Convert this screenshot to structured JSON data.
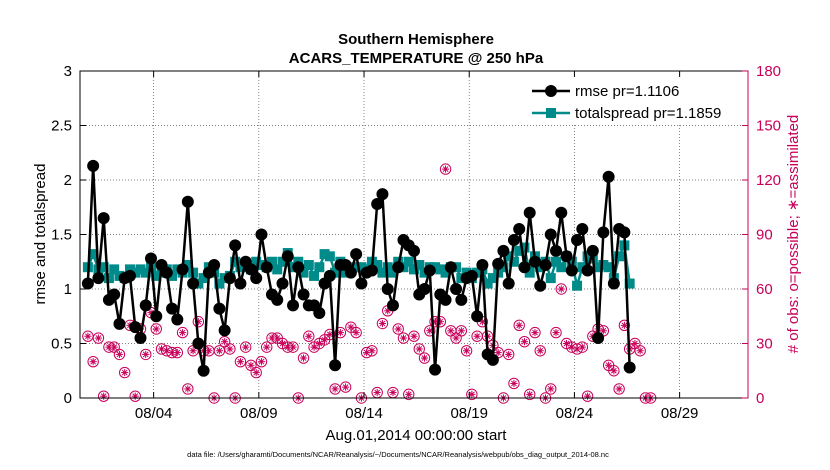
{
  "chart_data": {
    "type": "line",
    "title": "Southern Hemisphere",
    "subtitle": "ACARS_TEMPERATURE @ 250 hPa",
    "xlabel": "Aug.01,2014 00:00:00 start",
    "ylabel": "rmse and totalspread",
    "y2label": "# of obs: o=possible; ∗=assimilated",
    "footnote": "data file: /Users/gharamti/Documents/NCAR/Reanalysis/~/Documents/NCAR/Reanalysis/webpub/obs_diag_output_2014-08.nc",
    "xlim": [
      0.5,
      32.25
    ],
    "ylim": [
      0,
      3
    ],
    "y2lim": [
      0,
      180
    ],
    "xticks": [
      {
        "x": 4,
        "label": "08/04"
      },
      {
        "x": 9,
        "label": "08/09"
      },
      {
        "x": 14,
        "label": "08/14"
      },
      {
        "x": 19,
        "label": "08/19"
      },
      {
        "x": 24,
        "label": "08/24"
      },
      {
        "x": 29,
        "label": "08/29"
      }
    ],
    "yticks": [
      {
        "v": 0,
        "label": "0"
      },
      {
        "v": 0.5,
        "label": "0.5"
      },
      {
        "v": 1,
        "label": "1"
      },
      {
        "v": 1.5,
        "label": "1.5"
      },
      {
        "v": 2,
        "label": "2"
      },
      {
        "v": 2.5,
        "label": "2.5"
      },
      {
        "v": 3,
        "label": "3"
      }
    ],
    "y2ticks": [
      {
        "v": 0,
        "label": "0"
      },
      {
        "v": 30,
        "label": "30"
      },
      {
        "v": 60,
        "label": "60"
      },
      {
        "v": 90,
        "label": "90"
      },
      {
        "v": 120,
        "label": "120"
      },
      {
        "v": 150,
        "label": "150"
      },
      {
        "v": 180,
        "label": "180"
      }
    ],
    "grid": "dotted",
    "legend_position": "top-right",
    "x_start": 0.875,
    "x_step": 0.25,
    "series": [
      {
        "name": "rmse pr=1.1106",
        "color": "#000000",
        "marker": "circle",
        "values": [
          1.05,
          2.13,
          1.1,
          1.65,
          0.9,
          0.95,
          0.68,
          1.1,
          1.12,
          0.65,
          0.55,
          0.85,
          1.28,
          0.75,
          1.22,
          1.15,
          0.82,
          0.72,
          1.18,
          1.8,
          1.05,
          0.5,
          0.25,
          1.15,
          1.22,
          0.82,
          0.62,
          1.1,
          1.4,
          1.05,
          1.25,
          1.18,
          1.1,
          1.5,
          1.2,
          0.95,
          0.9,
          1.05,
          1.3,
          0.85,
          1.2,
          0.95,
          0.85,
          0.85,
          0.78,
          1.05,
          1.12,
          0.3,
          1.22,
          1.22,
          1.15,
          1.32,
          1.05,
          1.15,
          1.17,
          1.78,
          1.87,
          1.0,
          0.85,
          1.2,
          1.45,
          1.4,
          1.35,
          0.95,
          1.0,
          1.17,
          0.26,
          0.95,
          0.9,
          1.2,
          1.0,
          0.9,
          1.1,
          1.12,
          0.75,
          1.22,
          0.4,
          0.35,
          1.23,
          1.35,
          1.05,
          1.45,
          1.55,
          1.2,
          1.7,
          1.25,
          1.03,
          1.22,
          1.5,
          1.35,
          1.7,
          1.3,
          1.17,
          1.45,
          1.55,
          1.17,
          1.35,
          0.55,
          1.52,
          2.03,
          1.05,
          1.55,
          1.52,
          0.28
        ],
        "open": [
          1.05,
          2.13,
          1.1,
          1.65,
          0.9,
          0.95,
          0.68,
          1.1,
          1.12,
          0.65,
          0.55,
          0.85,
          1.28,
          0.75,
          1.22,
          1.15,
          0.82,
          0.72,
          1.18,
          1.8,
          1.05,
          0.5,
          0.25,
          1.15,
          1.22,
          0.82,
          0.62,
          1.1,
          1.4,
          1.05,
          1.25,
          1.18,
          1.1,
          1.5,
          1.2,
          0.95,
          0.9,
          1.05,
          1.3,
          0.85,
          1.2,
          0.95,
          0.85,
          0.85,
          0.78,
          1.05,
          1.12,
          0.3,
          1.22,
          1.22,
          1.15,
          1.32,
          1.05,
          1.15,
          1.17,
          1.78,
          1.87,
          1.0,
          0.85,
          1.2,
          1.45,
          1.4,
          1.35,
          0.95,
          1.0,
          1.17,
          0.26,
          0.95,
          0.9,
          1.2,
          1.0,
          0.9,
          1.1,
          1.12,
          0.75,
          1.22,
          0.4,
          0.35,
          1.23,
          1.35,
          1.05,
          1.45,
          1.55,
          1.2,
          1.7,
          1.25,
          1.03,
          1.22,
          1.5,
          1.35,
          1.7,
          1.3,
          1.17,
          1.45,
          1.55,
          1.17,
          1.35,
          0.55,
          1.52,
          2.03,
          1.05,
          1.55,
          1.52,
          0.28
        ]
      },
      {
        "name": "totalspread pr=1.1859",
        "color": "#008b8b",
        "marker": "square",
        "values": [
          1.2,
          1.32,
          1.18,
          1.2,
          1.1,
          1.18,
          1.12,
          1.1,
          1.18,
          1.15,
          1.18,
          1.15,
          1.2,
          1.12,
          1.15,
          1.18,
          1.12,
          1.18,
          1.15,
          1.22,
          1.15,
          1.05,
          1.1,
          1.2,
          1.15,
          1.05,
          1.1,
          1.12,
          1.25,
          1.2,
          1.22,
          1.18,
          1.25,
          1.22,
          1.2,
          1.25,
          1.18,
          1.25,
          1.33,
          1.2,
          1.25,
          1.15,
          1.22,
          1.12,
          1.2,
          1.32,
          1.3,
          1.15,
          1.25,
          1.15,
          1.18,
          1.2,
          1.2,
          1.18,
          1.25,
          1.22,
          1.15,
          1.2,
          1.15,
          1.25,
          1.2,
          1.25,
          1.18,
          1.22,
          1.15,
          1.2,
          1.2,
          1.18,
          1.15,
          1.2,
          1.2,
          1.1,
          1.15,
          1.1,
          1.15,
          1.18,
          1.05,
          1.1,
          1.15,
          1.2,
          1.3,
          1.25,
          1.35,
          1.38,
          1.15,
          1.3,
          1.2,
          1.25,
          1.1,
          1.25,
          1.2,
          1.3,
          1.25,
          1.03,
          1.2,
          1.3,
          1.28,
          1.2,
          1.22,
          1.2,
          1.1,
          1.3,
          1.4,
          1.05
        ]
      },
      {
        "name": "possible",
        "color": "#c8005a",
        "marker": "o",
        "axis": "right",
        "values": [
          34,
          20,
          33,
          1,
          28,
          28,
          24,
          14,
          40,
          1,
          38,
          24,
          47,
          38,
          27,
          26,
          25,
          25,
          36,
          5,
          26,
          42,
          26,
          26,
          0,
          26,
          31,
          27,
          0,
          20,
          28,
          18,
          14,
          20,
          28,
          33,
          33,
          30,
          28,
          28,
          0,
          22,
          34,
          28,
          30,
          32,
          35,
          5,
          36,
          6,
          39,
          36,
          0,
          25,
          26,
          3,
          41,
          48,
          3,
          38,
          33,
          2,
          34,
          27,
          22,
          37,
          42,
          42,
          126,
          37,
          33,
          37,
          26,
          2,
          34,
          42,
          34,
          29,
          25,
          0,
          24,
          8,
          40,
          31,
          2,
          36,
          26,
          0,
          5,
          36,
          60,
          30,
          28,
          27,
          28,
          1,
          34,
          38,
          37,
          18,
          15,
          5,
          40,
          27,
          30,
          26,
          0,
          0
        ],
        "x": [
          0.875,
          1.125,
          1.375,
          1.625,
          1.875,
          2.125,
          2.375,
          2.625,
          2.875,
          3.125,
          3.375,
          3.625,
          3.875,
          4.125,
          4.375,
          4.625,
          4.875,
          5.125,
          5.375,
          5.625,
          5.875,
          6.125,
          6.375,
          6.625,
          6.875,
          7.125,
          7.375,
          7.625,
          7.875,
          8.125,
          8.375,
          8.625,
          8.875,
          9.125,
          9.375,
          9.625,
          9.875,
          10.125,
          10.375,
          10.625,
          10.875,
          11.125,
          11.375,
          11.625,
          11.875,
          12.125,
          12.375,
          12.625,
          12.875,
          13.125,
          13.375,
          13.625,
          13.875,
          14.125,
          14.375,
          14.625,
          14.875,
          15.125,
          15.375,
          15.625,
          15.875,
          16.125,
          16.375,
          16.625,
          16.875,
          17.125,
          17.375,
          17.625,
          17.875,
          18.125,
          18.375,
          18.625,
          18.875,
          19.125,
          19.375,
          19.625,
          19.875,
          20.125,
          20.375,
          20.625,
          20.875,
          21.125,
          21.375,
          21.625,
          21.875,
          22.125,
          22.375,
          22.625,
          22.875,
          23.125,
          23.375,
          23.625,
          23.875,
          24.125,
          24.375,
          24.625,
          24.875,
          25.125,
          25.375,
          25.625,
          25.875,
          26.125,
          26.375,
          26.625,
          26.875,
          27.125,
          27.375,
          27.625
        ]
      },
      {
        "name": "assimilated",
        "color": "#c8005a",
        "marker": "asterisk",
        "axis": "right",
        "values": [
          34,
          20,
          33,
          1,
          28,
          28,
          24,
          14,
          40,
          1,
          38,
          24,
          47,
          38,
          27,
          26,
          25,
          25,
          36,
          5,
          26,
          42,
          26,
          26,
          0,
          26,
          31,
          27,
          0,
          20,
          28,
          18,
          14,
          20,
          28,
          33,
          33,
          30,
          28,
          28,
          0,
          22,
          34,
          28,
          30,
          32,
          35,
          5,
          36,
          6,
          39,
          36,
          0,
          25,
          26,
          3,
          41,
          48,
          3,
          38,
          33,
          2,
          34,
          27,
          22,
          37,
          42,
          42,
          126,
          37,
          33,
          37,
          26,
          2,
          34,
          42,
          34,
          29,
          25,
          0,
          24,
          8,
          40,
          31,
          2,
          36,
          26,
          0,
          5,
          36,
          60,
          30,
          28,
          27,
          28,
          1,
          34,
          38,
          37,
          18,
          15,
          5,
          40,
          27,
          30,
          26,
          0,
          0
        ]
      }
    ]
  }
}
